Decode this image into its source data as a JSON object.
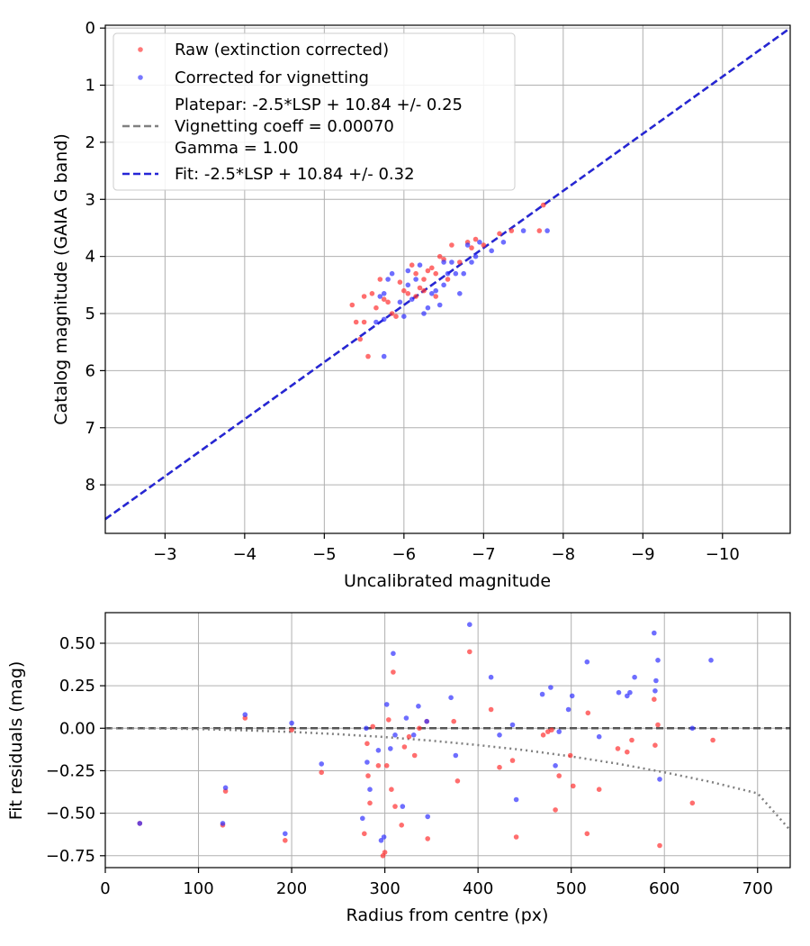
{
  "chart_data": [
    {
      "type": "scatter",
      "xlabel": "Uncalibrated magnitude",
      "ylabel": "Catalog magnitude (GAIA G band)",
      "xlim": [
        -2.25,
        -10.85
      ],
      "ylim": [
        8.85,
        -0.05
      ],
      "xticks": [
        -3,
        -4,
        -5,
        -6,
        -7,
        -8,
        -9,
        -10
      ],
      "xtick_labels": [
        "−3",
        "−4",
        "−5",
        "−6",
        "−7",
        "−8",
        "−9",
        "−10"
      ],
      "yticks": [
        0,
        1,
        2,
        3,
        4,
        5,
        6,
        7,
        8
      ],
      "ytick_labels": [
        "0",
        "1",
        "2",
        "3",
        "4",
        "5",
        "6",
        "7",
        "8"
      ],
      "grid": true,
      "legend": {
        "position": "top-left",
        "entries": [
          {
            "label": "Raw (extinction corrected)",
            "color": "#ff3030",
            "marker": "dot"
          },
          {
            "label": "Corrected for vignetting",
            "color": "#3030ff",
            "marker": "dot"
          },
          {
            "label": "Platepar: -2.5*LSP + 10.84 +/- 0.25",
            "label2": "Vignetting coeff = 0.00070",
            "label3": "Gamma = 1.00",
            "color": "#808080",
            "marker": "dashed"
          },
          {
            "label": "Fit: -2.5*LSP + 10.84 +/- 0.32",
            "color": "#2626d6",
            "marker": "dashed"
          }
        ]
      },
      "lines": [
        {
          "name": "Platepar",
          "x": [
            -2.25,
            -10.85
          ],
          "y": [
            8.6,
            0.0
          ],
          "color": "#808080",
          "style": "dashed"
        },
        {
          "name": "Fit",
          "x": [
            -2.25,
            -10.85
          ],
          "y": [
            8.6,
            0.0
          ],
          "color": "#2626d6",
          "style": "dashed"
        }
      ],
      "series": [
        {
          "name": "Raw (extinction corrected)",
          "color": "#ff3030",
          "x": [
            -5.4,
            -5.45,
            -5.55,
            -5.6,
            -5.65,
            -5.7,
            -5.75,
            -5.8,
            -5.9,
            -5.95,
            -6.0,
            -6.05,
            -6.1,
            -6.15,
            -6.2,
            -6.25,
            -6.3,
            -6.35,
            -6.4,
            -6.45,
            -6.5,
            -6.6,
            -6.7,
            -6.8,
            -6.85,
            -6.9,
            -7.0,
            -7.2,
            -7.35,
            -7.7,
            -7.75,
            -5.35,
            -5.5,
            -5.85,
            -6.25,
            -6.55,
            -5.5,
            -6.15,
            -6.4
          ],
          "y": [
            5.15,
            5.45,
            5.75,
            4.65,
            4.9,
            4.4,
            4.75,
            4.8,
            5.05,
            4.45,
            4.6,
            4.65,
            4.15,
            4.7,
            4.55,
            4.4,
            4.25,
            4.2,
            4.3,
            4.0,
            4.05,
            3.8,
            4.1,
            3.75,
            3.85,
            3.7,
            3.8,
            3.6,
            3.55,
            3.55,
            3.1,
            4.85,
            4.7,
            5.0,
            4.6,
            4.4,
            5.15,
            4.3,
            4.7
          ]
        },
        {
          "name": "Corrected for vignetting",
          "color": "#3030ff",
          "x": [
            -5.7,
            -5.75,
            -5.8,
            -5.85,
            -5.95,
            -6.0,
            -6.1,
            -6.15,
            -6.2,
            -6.3,
            -6.35,
            -6.4,
            -6.5,
            -6.55,
            -6.6,
            -6.7,
            -6.75,
            -6.8,
            -6.9,
            -6.95,
            -7.1,
            -7.25,
            -7.5,
            -7.8,
            -5.75,
            -6.05,
            -6.25,
            -6.45,
            -6.65,
            -6.85,
            -5.65,
            -6.5,
            -6.05,
            -5.75
          ],
          "y": [
            4.7,
            5.75,
            4.4,
            4.3,
            4.8,
            5.05,
            4.75,
            4.4,
            4.15,
            4.9,
            4.65,
            4.6,
            4.5,
            4.3,
            4.1,
            4.65,
            4.3,
            3.8,
            4.0,
            3.75,
            3.9,
            3.75,
            3.55,
            3.55,
            5.1,
            4.5,
            5.0,
            4.85,
            4.3,
            4.1,
            5.15,
            4.1,
            4.25,
            4.65
          ]
        }
      ]
    },
    {
      "type": "scatter",
      "xlabel": "Radius from centre (px)",
      "ylabel": "Fit residuals (mag)",
      "xlim": [
        0,
        735
      ],
      "ylim": [
        -0.82,
        0.68
      ],
      "xticks": [
        0,
        100,
        200,
        300,
        400,
        500,
        600,
        700
      ],
      "xtick_labels": [
        "0",
        "100",
        "200",
        "300",
        "400",
        "500",
        "600",
        "700"
      ],
      "yticks": [
        0.5,
        0.25,
        0.0,
        -0.25,
        -0.5,
        -0.75
      ],
      "ytick_labels": [
        "0.50",
        "0.25",
        "0.00",
        "−0.25",
        "−0.50",
        "−0.75"
      ],
      "grid": true,
      "lines": [
        {
          "name": "zero",
          "x": [
            0,
            735
          ],
          "y": [
            0,
            0
          ],
          "color": "#555555",
          "style": "dashed"
        },
        {
          "name": "vignetting",
          "x": [
            0,
            50,
            100,
            150,
            200,
            250,
            300,
            350,
            400,
            450,
            500,
            550,
            600,
            650,
            700,
            735
          ],
          "y": [
            0.0,
            -0.001,
            -0.005,
            -0.012,
            -0.022,
            -0.035,
            -0.052,
            -0.073,
            -0.099,
            -0.129,
            -0.166,
            -0.209,
            -0.259,
            -0.316,
            -0.383,
            -0.6
          ],
          "color": "#808080",
          "style": "dotted"
        }
      ],
      "series": [
        {
          "name": "Raw (extinction corrected)",
          "color": "#ff3030",
          "x": [
            37,
            126,
            129,
            150,
            193,
            200,
            232,
            278,
            281,
            282,
            284,
            287,
            293,
            298,
            300,
            302,
            304,
            307,
            309,
            311,
            318,
            321,
            326,
            332,
            337,
            345,
            346,
            374,
            378,
            391,
            414,
            423,
            437,
            441,
            470,
            475,
            479,
            483,
            487,
            499,
            502,
            517,
            518,
            530,
            550,
            560,
            565,
            589,
            590,
            593,
            595,
            630,
            652
          ],
          "y": [
            -0.56,
            -0.57,
            -0.37,
            0.06,
            -0.66,
            -0.01,
            -0.26,
            -0.62,
            -0.09,
            -0.28,
            -0.44,
            0.01,
            -0.22,
            -0.75,
            -0.73,
            -0.22,
            0.05,
            -0.36,
            0.33,
            -0.46,
            -0.57,
            -0.11,
            -0.05,
            -0.16,
            0.0,
            0.04,
            -0.65,
            0.04,
            -0.31,
            0.45,
            0.11,
            -0.23,
            -0.19,
            -0.64,
            -0.04,
            -0.02,
            -0.01,
            -0.48,
            -0.28,
            -0.16,
            -0.34,
            -0.62,
            0.09,
            -0.36,
            -0.12,
            -0.14,
            -0.07,
            0.17,
            -0.1,
            0.02,
            -0.69,
            -0.44,
            -0.07
          ]
        },
        {
          "name": "Corrected for vignetting",
          "color": "#3030ff",
          "x": [
            37,
            126,
            129,
            150,
            193,
            200,
            232,
            276,
            280,
            281,
            284,
            293,
            296,
            299,
            302,
            306,
            309,
            311,
            319,
            323,
            331,
            336,
            345,
            346,
            371,
            376,
            391,
            414,
            423,
            437,
            441,
            469,
            478,
            483,
            487,
            497,
            501,
            517,
            530,
            551,
            560,
            563,
            568,
            589,
            590,
            591,
            593,
            595,
            630,
            650
          ],
          "y": [
            -0.56,
            -0.56,
            -0.35,
            0.08,
            -0.62,
            0.03,
            -0.21,
            -0.53,
            0.0,
            -0.2,
            -0.36,
            -0.13,
            -0.66,
            -0.64,
            0.14,
            -0.12,
            0.44,
            -0.04,
            -0.46,
            0.06,
            -0.04,
            0.13,
            0.04,
            -0.52,
            0.18,
            -0.16,
            0.61,
            0.3,
            -0.04,
            0.02,
            -0.42,
            0.2,
            0.24,
            -0.22,
            -0.02,
            0.11,
            0.19,
            0.39,
            -0.05,
            0.21,
            0.19,
            0.21,
            0.3,
            0.56,
            0.22,
            0.28,
            0.4,
            -0.3,
            0.0,
            0.4
          ]
        }
      ]
    }
  ]
}
